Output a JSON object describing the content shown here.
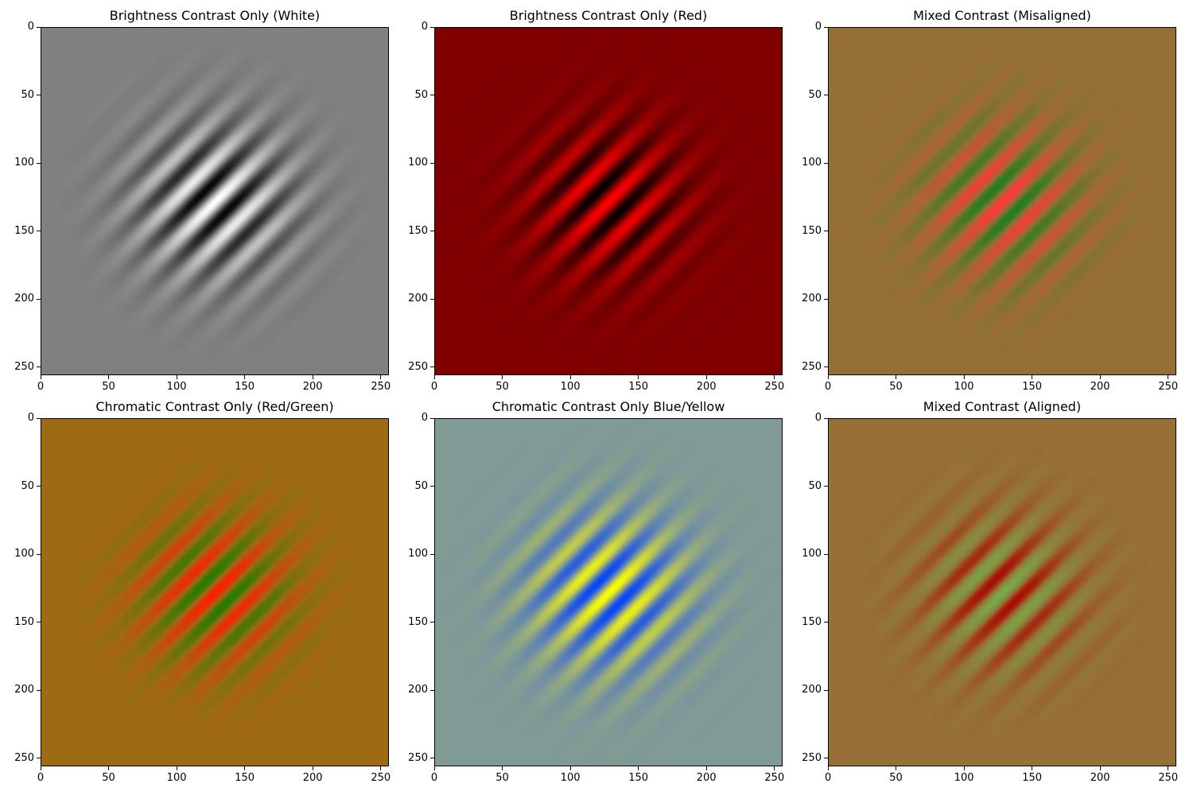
{
  "chart_data": [
    {
      "type": "heatmap",
      "title": "Brightness Contrast Only (White)",
      "image_size": [
        256,
        256
      ],
      "x_ticks": [
        0,
        50,
        100,
        150,
        200,
        250
      ],
      "y_ticks": [
        0,
        50,
        100,
        150,
        200,
        250
      ],
      "background_color": "#808080",
      "stripe_colors": [
        "#000000",
        "#ffffff"
      ],
      "stripe_orientation": "diagonal"
    },
    {
      "type": "heatmap",
      "title": "Brightness Contrast Only (Red)",
      "image_size": [
        256,
        256
      ],
      "x_ticks": [
        0,
        50,
        100,
        150,
        200,
        250
      ],
      "y_ticks": [
        0,
        50,
        100,
        150,
        200,
        250
      ],
      "background_color": "#800000",
      "stripe_colors": [
        "#000000",
        "#ff0000"
      ],
      "stripe_orientation": "diagonal"
    },
    {
      "type": "heatmap",
      "title": "Mixed Contrast (Misaligned)",
      "image_size": [
        256,
        256
      ],
      "x_ticks": [
        0,
        50,
        100,
        150,
        200,
        250
      ],
      "y_ticks": [
        0,
        50,
        100,
        150,
        200,
        250
      ],
      "background_color": "#947035",
      "stripe_colors": [
        "#1e7d1e",
        "#ff3838"
      ],
      "stripe_orientation": "diagonal"
    },
    {
      "type": "heatmap",
      "title": "Chromatic Contrast Only (Red/Green)",
      "image_size": [
        256,
        256
      ],
      "x_ticks": [
        0,
        50,
        100,
        150,
        200,
        250
      ],
      "y_ticks": [
        0,
        50,
        100,
        150,
        200,
        250
      ],
      "background_color": "#9e6b14",
      "stripe_colors": [
        "#1e7d00",
        "#ff1e00"
      ],
      "stripe_orientation": "diagonal"
    },
    {
      "type": "heatmap",
      "title": "Chromatic Contrast Only Blue/Yellow",
      "image_size": [
        256,
        256
      ],
      "x_ticks": [
        0,
        50,
        100,
        150,
        200,
        250
      ],
      "y_ticks": [
        0,
        50,
        100,
        150,
        200,
        250
      ],
      "background_color": "#809a96",
      "stripe_colors": [
        "#0040ff",
        "#ffff00"
      ],
      "stripe_orientation": "diagonal"
    },
    {
      "type": "heatmap",
      "title": "Mixed Contrast (Aligned)",
      "image_size": [
        256,
        256
      ],
      "x_ticks": [
        0,
        50,
        100,
        150,
        200,
        250
      ],
      "y_ticks": [
        0,
        50,
        100,
        150,
        200,
        250
      ],
      "background_color": "#967036",
      "stripe_colors": [
        "#aa0800",
        "#78aa4a"
      ],
      "stripe_orientation": "diagonal"
    }
  ]
}
